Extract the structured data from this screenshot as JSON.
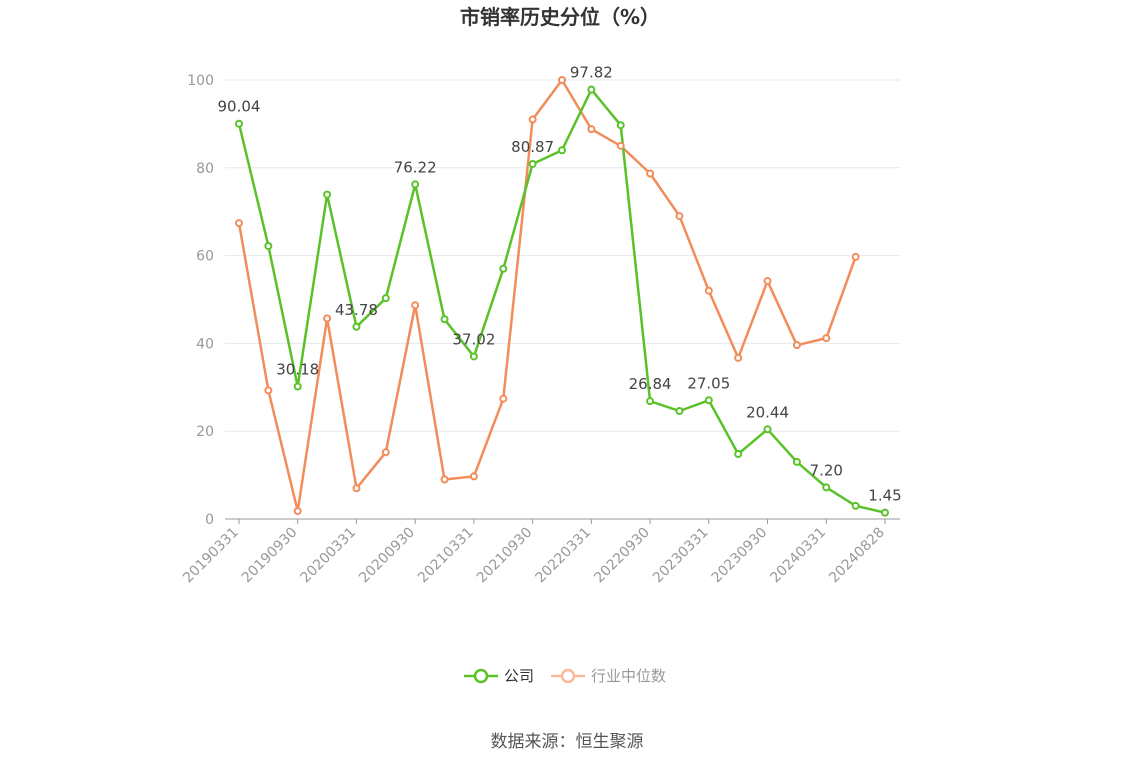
{
  "chart_data": {
    "type": "line",
    "title": "市销率历史分位（%）",
    "source": "数据来源：恒生聚源",
    "ylim": [
      0,
      100
    ],
    "yticks": [
      0,
      20,
      40,
      60,
      80,
      100
    ],
    "grid": true,
    "legend_position": "bottom",
    "x": [
      "20190331",
      "20190630",
      "20190930",
      "20191231",
      "20200331",
      "20200630",
      "20200930",
      "20201231",
      "20210331",
      "20210630",
      "20210930",
      "20211231",
      "20220331",
      "20220630",
      "20220930",
      "20221231",
      "20230331",
      "20230630",
      "20230930",
      "20231231",
      "20240331",
      "20240630",
      "20240828"
    ],
    "x_tick_labels": [
      "20190331",
      "20190930",
      "20200331",
      "20200930",
      "20210331",
      "20210930",
      "20220331",
      "20220930",
      "20230331",
      "20230930",
      "20240331",
      "20240828"
    ],
    "series": [
      {
        "name": "公司",
        "color": "#5ac229",
        "values": [
          90.04,
          62.2,
          30.18,
          73.9,
          43.78,
          50.3,
          76.22,
          45.5,
          37.02,
          57.0,
          80.87,
          84.0,
          97.82,
          89.7,
          26.84,
          24.6,
          27.05,
          14.8,
          20.44,
          13.0,
          7.2,
          3.0,
          1.45
        ],
        "labels": {
          "0": "90.04",
          "2": "30.18",
          "4": "43.78",
          "6": "76.22",
          "8": "37.02",
          "10": "80.87",
          "12": "97.82",
          "14": "26.84",
          "16": "27.05",
          "18": "20.44",
          "20": "7.20",
          "22": "1.45"
        }
      },
      {
        "name": "行业中位数",
        "color": "#f28c5a",
        "legend_color": "#f9b99a",
        "values": [
          67.4,
          29.3,
          1.8,
          45.7,
          7.0,
          15.2,
          48.7,
          9.0,
          9.7,
          27.4,
          91.0,
          100.0,
          88.8,
          85.0,
          78.7,
          69.0,
          52.0,
          36.7,
          54.2,
          39.6,
          41.2,
          59.7,
          null
        ]
      }
    ]
  }
}
